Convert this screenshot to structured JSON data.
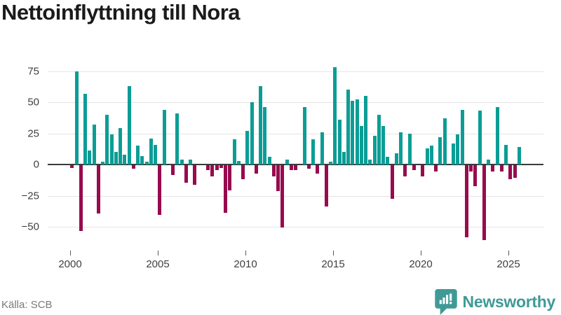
{
  "title": "Nettoinflyttning till Nora",
  "source": "Källa: SCB",
  "logo": {
    "text": "Newsworthy",
    "icon": "newsworthy-bars-speech-bubble-icon"
  },
  "colors": {
    "positive": "#0b9d95",
    "negative": "#970b4e",
    "logo_teal": "#3f9a96",
    "gridline": "#e4e4e4",
    "zero_line": "#3b3b3b",
    "axis_text": "#3f3f3f",
    "title_text": "#1b1b1b",
    "source_text": "#7a7a7a"
  },
  "chart_data": {
    "type": "bar",
    "title": "Nettoinflyttning till Nora",
    "xlabel": "",
    "ylabel": "",
    "grid": "horizontal",
    "legend": "none",
    "ylim": [
      -62,
      80
    ],
    "y_ticks": [
      75,
      50,
      25,
      0,
      -25,
      -50
    ],
    "y_tick_labels": [
      "75",
      "50",
      "25",
      "0",
      "−25",
      "−50"
    ],
    "x_tick_years": [
      2000,
      2005,
      2010,
      2015,
      2020,
      2025
    ],
    "x_tick_labels": [
      "2000",
      "2005",
      "2010",
      "2015",
      "2020",
      "2025"
    ],
    "categories": [
      "2000 Q1",
      "2000 Q2",
      "2000 Q3",
      "2000 Q4",
      "2001 Q1",
      "2001 Q2",
      "2001 Q3",
      "2001 Q4",
      "2002 Q1",
      "2002 Q2",
      "2002 Q3",
      "2002 Q4",
      "2003 Q1",
      "2003 Q2",
      "2003 Q3",
      "2003 Q4",
      "2004 Q1",
      "2004 Q2",
      "2004 Q3",
      "2004 Q4",
      "2005 Q1",
      "2005 Q2",
      "2005 Q3",
      "2005 Q4",
      "2006 Q1",
      "2006 Q2",
      "2006 Q3",
      "2006 Q4",
      "2007 Q1",
      "2007 Q2",
      "2007 Q3",
      "2007 Q4",
      "2008 Q1",
      "2008 Q2",
      "2008 Q3",
      "2008 Q4",
      "2009 Q1",
      "2009 Q2",
      "2009 Q3",
      "2009 Q4",
      "2010 Q1",
      "2010 Q2",
      "2010 Q3",
      "2010 Q4",
      "2011 Q1",
      "2011 Q2",
      "2011 Q3",
      "2011 Q4",
      "2012 Q1",
      "2012 Q2",
      "2012 Q3",
      "2012 Q4",
      "2013 Q1",
      "2013 Q2",
      "2013 Q3",
      "2013 Q4",
      "2014 Q1",
      "2014 Q2",
      "2014 Q3",
      "2014 Q4",
      "2015 Q1",
      "2015 Q2",
      "2015 Q3",
      "2015 Q4",
      "2016 Q1",
      "2016 Q2",
      "2016 Q3",
      "2016 Q4",
      "2017 Q1",
      "2017 Q2",
      "2017 Q3",
      "2017 Q4",
      "2018 Q1",
      "2018 Q2",
      "2018 Q3",
      "2018 Q4",
      "2019 Q1",
      "2019 Q2",
      "2019 Q3",
      "2019 Q4",
      "2020 Q1",
      "2020 Q2",
      "2020 Q3",
      "2020 Q4",
      "2021 Q1",
      "2021 Q2",
      "2021 Q3",
      "2021 Q4",
      "2022 Q1",
      "2022 Q2",
      "2022 Q3",
      "2022 Q4",
      "2023 Q1",
      "2023 Q2",
      "2023 Q3",
      "2023 Q4",
      "2024 Q1",
      "2024 Q2",
      "2024 Q3",
      "2024 Q4",
      "2025 Q1",
      "2025 Q2",
      "2025 Q3"
    ],
    "values": [
      -2,
      75,
      -53,
      57,
      11,
      32,
      -39,
      2,
      40,
      24,
      10,
      29,
      8,
      63,
      -3,
      15,
      7,
      2,
      21,
      16,
      -40,
      44,
      0,
      -8,
      41,
      4,
      -14,
      4,
      -16,
      0,
      0,
      -4,
      -9,
      -4,
      -2,
      -38,
      -20,
      20,
      3,
      -11,
      27,
      50,
      -7,
      63,
      46,
      6,
      -9,
      -21,
      -50,
      4,
      -4,
      -4,
      0,
      46,
      -3,
      20,
      -7,
      26,
      -33,
      2,
      78,
      36,
      10,
      60,
      51,
      52,
      31,
      55,
      4,
      23,
      40,
      31,
      6,
      -27,
      9,
      26,
      -9,
      25,
      -4,
      0,
      -9,
      13,
      15,
      -5,
      22,
      37,
      0,
      17,
      24,
      44,
      -58,
      -5,
      -17,
      43,
      -60,
      4,
      -5,
      46,
      -5,
      16,
      -11,
      -10,
      14
    ],
    "positive_color": "#0b9d95",
    "negative_color": "#970b4e"
  }
}
